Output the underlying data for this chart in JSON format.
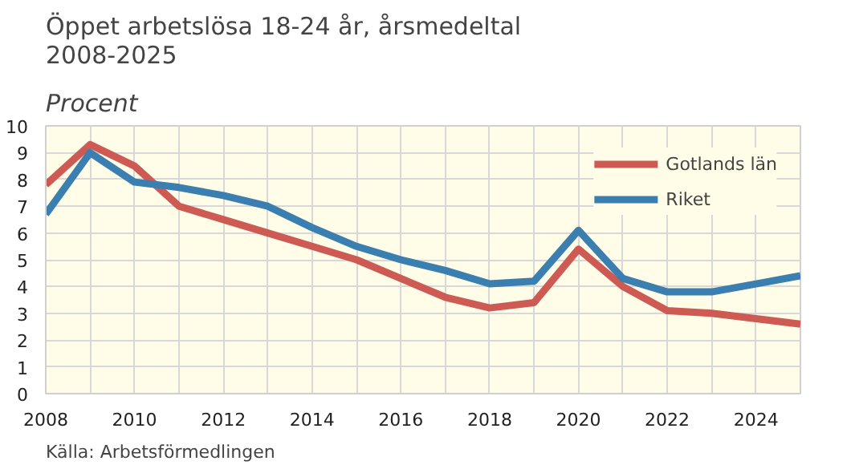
{
  "chart_data": {
    "type": "line",
    "title": "Öppet arbetslösa 18-24 år, årsmedeltal 2008-2025",
    "subtitle": "Procent",
    "x": [
      2008,
      2009,
      2010,
      2011,
      2012,
      2013,
      2014,
      2015,
      2016,
      2017,
      2018,
      2019,
      2020,
      2021,
      2022,
      2023,
      2024,
      2025
    ],
    "series": [
      {
        "name": "Gotlands län",
        "color": "#cd5b54",
        "values": [
          7.8,
          9.3,
          8.5,
          7.0,
          6.5,
          6.0,
          5.5,
          5.0,
          4.3,
          3.6,
          3.2,
          3.4,
          5.4,
          4.0,
          3.1,
          3.0,
          2.8,
          2.6
        ]
      },
      {
        "name": "Riket",
        "color": "#3a7fb0",
        "values": [
          6.7,
          9.0,
          7.9,
          7.7,
          7.4,
          7.0,
          6.2,
          5.5,
          5.0,
          4.6,
          4.1,
          4.2,
          6.1,
          4.3,
          3.8,
          3.8,
          4.1,
          4.4
        ]
      }
    ],
    "xlim": [
      2008,
      2025
    ],
    "ylim": [
      0,
      10
    ],
    "xticks": [
      2008,
      {
        "value": 2009,
        "label": null
      },
      2010,
      {
        "value": 2011,
        "label": null
      },
      2012,
      {
        "value": 2013,
        "label": null
      },
      2014,
      {
        "value": 2015,
        "label": null
      },
      2016,
      {
        "value": 2017,
        "label": null
      },
      2018,
      {
        "value": 2019,
        "label": null
      },
      2020,
      {
        "value": 2021,
        "label": null
      },
      2022,
      {
        "value": 2023,
        "label": null
      },
      2024,
      {
        "value": 2025,
        "label": null
      }
    ],
    "yticks": [
      0,
      1,
      2,
      3,
      4,
      5,
      6,
      7,
      8,
      9,
      10
    ],
    "grid": true,
    "legend": "top right",
    "marker": "none",
    "line_style": "solid",
    "annotations": [
      "Källa: Arbetsförmedlingen"
    ]
  }
}
